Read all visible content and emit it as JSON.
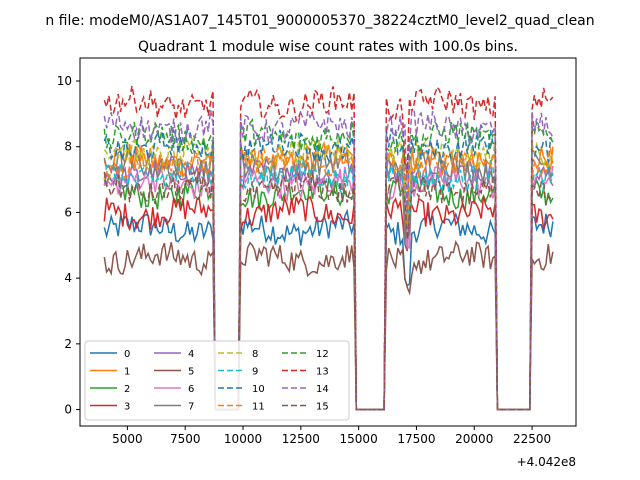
{
  "figure": {
    "suptitle": "n file: modeM0/AS1A07_145T01_9000005370_38224cztM0_level2_quad_clean",
    "title": "Quadrant 1 module wise count rates with 100.0s bins.",
    "offset_label": "+4.042e8"
  },
  "chart_data": {
    "type": "line",
    "title": "Quadrant 1 module wise count rates with 100.0s bins.",
    "xlabel": "",
    "ylabel": "",
    "x_offset": 404200000,
    "xlim": [
      2950,
      24400
    ],
    "ylim": [
      -0.5,
      10.7
    ],
    "xticks": [
      5000,
      7500,
      10000,
      12500,
      15000,
      17500,
      20000,
      22500
    ],
    "yticks": [
      0,
      2,
      4,
      6,
      8,
      10
    ],
    "grid": false,
    "legend_placement": "lower-left",
    "legend_columns": 4,
    "bin_seconds": 100,
    "x_start": 4000,
    "x_end": 23400,
    "gaps": [
      {
        "from": 8750,
        "to": 9800
      },
      {
        "from": 14900,
        "to": 16100
      },
      {
        "from": 21000,
        "to": 22400
      }
    ],
    "series": [
      {
        "name": "0",
        "color": "#1f77b4",
        "dash": "solid",
        "level": 5.5
      },
      {
        "name": "1",
        "color": "#ff7f0e",
        "dash": "solid",
        "level": 7.6
      },
      {
        "name": "2",
        "color": "#2ca02c",
        "dash": "solid",
        "level": 6.6
      },
      {
        "name": "3",
        "color": "#d62728",
        "dash": "solid",
        "level": 6.0
      },
      {
        "name": "4",
        "color": "#9467bd",
        "dash": "solid",
        "level": 7.2
      },
      {
        "name": "5",
        "color": "#8c564b",
        "dash": "solid",
        "level": 4.6
      },
      {
        "name": "6",
        "color": "#e377c2",
        "dash": "solid",
        "level": 6.9
      },
      {
        "name": "7",
        "color": "#7f7f7f",
        "dash": "solid",
        "level": 7.4
      },
      {
        "name": "8",
        "color": "#bcbd22",
        "dash": "dashed",
        "level": 7.8
      },
      {
        "name": "9",
        "color": "#17becf",
        "dash": "dashed",
        "level": 7.1
      },
      {
        "name": "10",
        "color": "#1f77b4",
        "dash": "dashed",
        "level": 8.0
      },
      {
        "name": "11",
        "color": "#ff7f0e",
        "dash": "dashed",
        "level": 7.5
      },
      {
        "name": "12",
        "color": "#2ca02c",
        "dash": "dashed",
        "level": 8.3
      },
      {
        "name": "13",
        "color": "#d62728",
        "dash": "dashed",
        "level": 9.3
      },
      {
        "name": "14",
        "color": "#9467bd",
        "dash": "dashed",
        "level": 8.6
      },
      {
        "name": "15",
        "color": "#8c564b",
        "dash": "dashed",
        "level": 6.7
      }
    ]
  }
}
